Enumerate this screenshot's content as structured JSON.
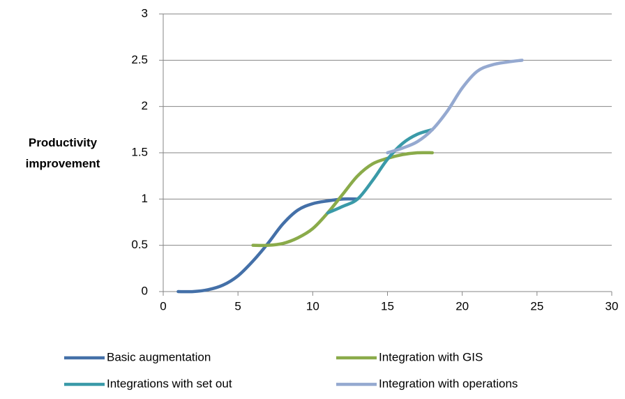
{
  "chart_data": {
    "type": "line",
    "y_label": "Productivity improvement",
    "xlim": [
      0,
      30
    ],
    "xticks": [
      0,
      5,
      10,
      15,
      20,
      25,
      30
    ],
    "ylim": [
      0,
      3
    ],
    "yticks": [
      0,
      0.5,
      1,
      1.5,
      2,
      2.5,
      3
    ],
    "grid": true,
    "smooth": true,
    "series": [
      {
        "name": "Basic augmentation",
        "color": "#4470a8",
        "x": [
          1,
          2,
          3,
          4,
          5,
          6,
          7,
          8,
          9,
          10,
          11,
          12,
          13
        ],
        "values": [
          0,
          0,
          0.02,
          0.07,
          0.17,
          0.33,
          0.52,
          0.73,
          0.88,
          0.95,
          0.98,
          1.0,
          1.0
        ]
      },
      {
        "name": "Integration with GIS",
        "color": "#8aab4a",
        "x": [
          6,
          7,
          8,
          9,
          10,
          11,
          12,
          13,
          14,
          15,
          16,
          17,
          18
        ],
        "values": [
          0.5,
          0.5,
          0.52,
          0.58,
          0.68,
          0.85,
          1.05,
          1.25,
          1.38,
          1.44,
          1.48,
          1.5,
          1.5
        ]
      },
      {
        "name": "Integrations with set out",
        "color": "#3a9aa8",
        "x": [
          11,
          12,
          13,
          14,
          15,
          16,
          17,
          18
        ],
        "values": [
          0.85,
          0.92,
          1.0,
          1.2,
          1.43,
          1.6,
          1.7,
          1.75
        ]
      },
      {
        "name": "Integration with operations",
        "color": "#95a9d0",
        "x": [
          15,
          16,
          17,
          18,
          19,
          20,
          21,
          22,
          23,
          24
        ],
        "values": [
          1.5,
          1.55,
          1.62,
          1.75,
          1.95,
          2.2,
          2.38,
          2.45,
          2.48,
          2.5
        ]
      }
    ]
  }
}
